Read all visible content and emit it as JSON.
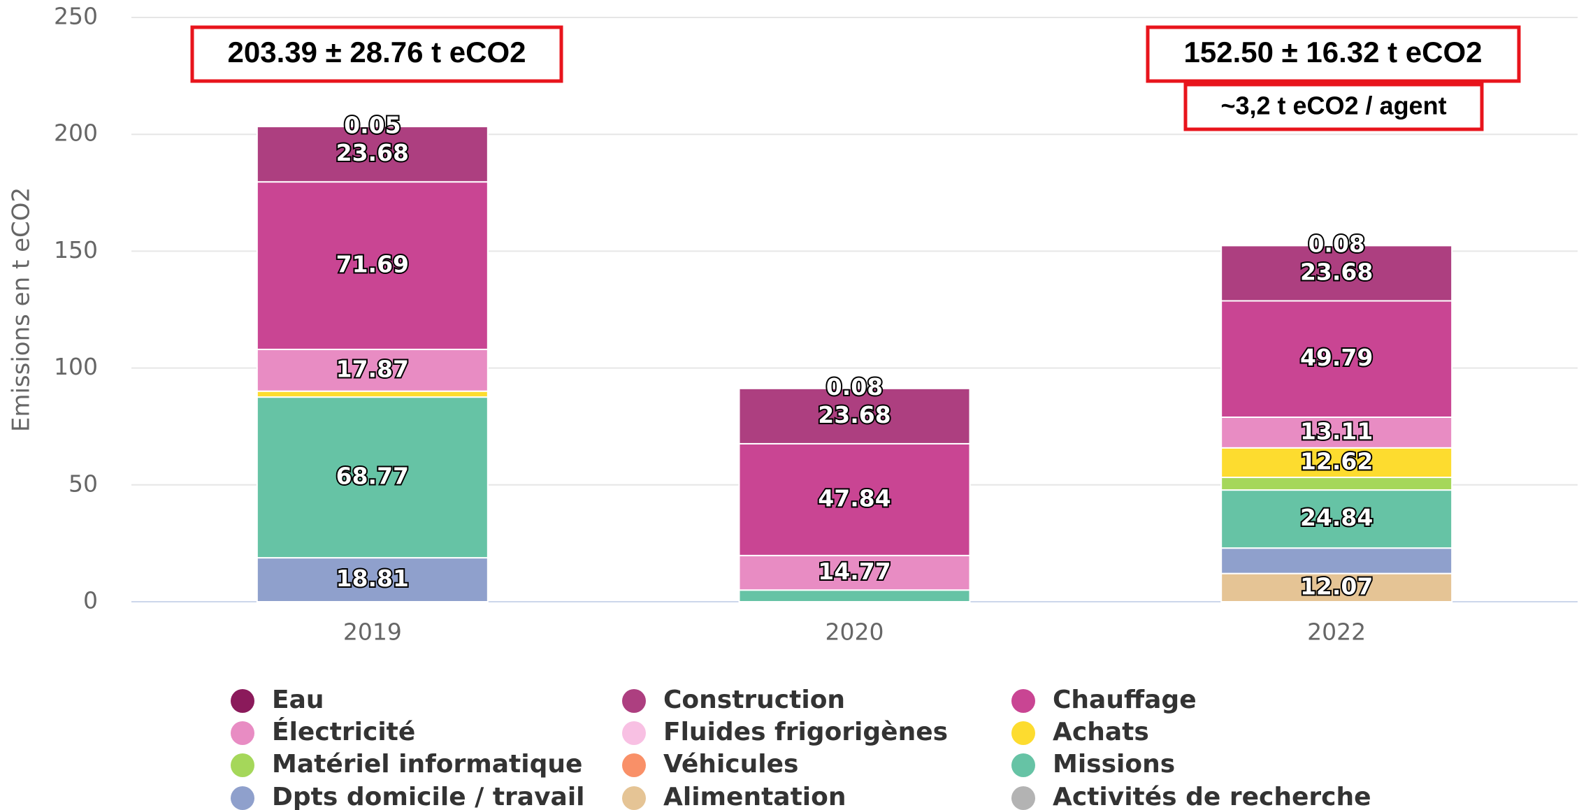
{
  "chart_data": {
    "type": "stacked_bar",
    "ylabel": "Emissions en t eCO2",
    "categories": [
      "2019",
      "2020",
      "2022"
    ],
    "ylim": [
      0,
      250
    ],
    "yticks": [
      0,
      50,
      100,
      150,
      200,
      250
    ],
    "grid": true,
    "legend": "bottom",
    "annotations": [
      "203.39 ± 28.76 t eCO2",
      "152.50 ± 16.32 t eCO2",
      "~3,2 t eCO2 / agent"
    ],
    "series": [
      {
        "name": "Eau",
        "color": "#8b1a5b",
        "values": [
          0.05,
          0.08,
          0.08
        ],
        "value_labels": [
          "0.05",
          "0.08",
          "0.08"
        ]
      },
      {
        "name": "Construction",
        "color": "#ad3f80",
        "values": [
          23.68,
          23.68,
          23.68
        ],
        "value_labels": [
          "23.68",
          "23.68",
          "23.68"
        ]
      },
      {
        "name": "Chauffage",
        "color": "#c94593",
        "values": [
          71.69,
          47.84,
          49.79
        ],
        "value_labels": [
          "71.69",
          "47.84",
          "49.79"
        ]
      },
      {
        "name": "Électricité",
        "color": "#e88cc3",
        "values": [
          17.87,
          14.77,
          13.11
        ],
        "value_labels": [
          "17.87",
          "14.77",
          "13.11"
        ]
      },
      {
        "name": "Fluides frigorigènes",
        "color": "#f8c0e3",
        "values": [
          null,
          null,
          null
        ]
      },
      {
        "name": "Achats",
        "color": "#fddc2f",
        "values": [
          2.52,
          null,
          12.62
        ],
        "value_labels": [
          null,
          null,
          "12.62"
        ]
      },
      {
        "name": "Matériel informatique",
        "color": "#a5d75a",
        "values": [
          null,
          null,
          5.41
        ]
      },
      {
        "name": "Véhicules",
        "color": "#f99068",
        "values": [
          null,
          null,
          null
        ]
      },
      {
        "name": "Missions",
        "color": "#66c3a5",
        "values": [
          68.77,
          5,
          24.84
        ],
        "value_labels": [
          "68.77",
          null,
          "24.84"
        ]
      },
      {
        "name": "Dpts domicile / travail",
        "color": "#8fa0cc",
        "values": [
          18.81,
          null,
          10.9
        ],
        "value_labels": [
          "18.81",
          null,
          null
        ]
      },
      {
        "name": "Alimentation",
        "color": "#e5c495",
        "values": [
          null,
          null,
          12.07
        ],
        "value_labels": [
          null,
          null,
          "12.07"
        ]
      },
      {
        "name": "Activités de recherche",
        "color": "#b3b3b3",
        "values": [
          null,
          null,
          null
        ]
      }
    ]
  }
}
